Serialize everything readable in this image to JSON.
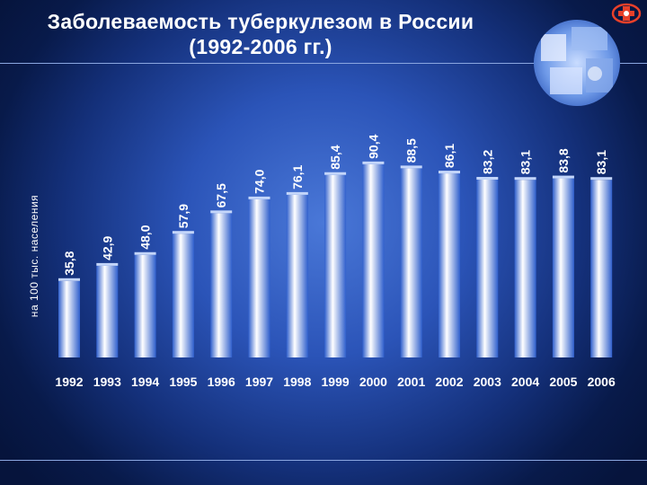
{
  "title": {
    "line1": "Заболеваемость туберкулезом в России",
    "line2": "(1992-2006 гг.)"
  },
  "colors": {
    "background": "#0b2168",
    "bar_light": "#ffffff",
    "bar_mid": "#8fb2f2",
    "bar_dark": "#2f5fcc",
    "text": "#ffffff"
  },
  "chart_data": {
    "type": "bar",
    "title": "Заболеваемость туберкулезом в России (1992-2006 гг.)",
    "xlabel": "",
    "ylabel": "на 100 тыс. населения",
    "categories": [
      "1992",
      "1993",
      "1994",
      "1995",
      "1996",
      "1997",
      "1998",
      "1999",
      "2000",
      "2001",
      "2002",
      "2003",
      "2004",
      "2005",
      "2006"
    ],
    "values": [
      35.8,
      42.9,
      48.0,
      57.9,
      67.5,
      74.0,
      76.1,
      85.4,
      90.4,
      88.5,
      86.1,
      83.2,
      83.1,
      83.8,
      83.1
    ],
    "value_labels": [
      "35,8",
      "42,9",
      "48,0",
      "57,9",
      "67,5",
      "74,0",
      "76,1",
      "85,4",
      "90,4",
      "88,5",
      "86,1",
      "83,2",
      "83,1",
      "83,8",
      "83,1"
    ],
    "ylim": [
      0,
      100
    ],
    "grid": false,
    "legend": "none"
  }
}
